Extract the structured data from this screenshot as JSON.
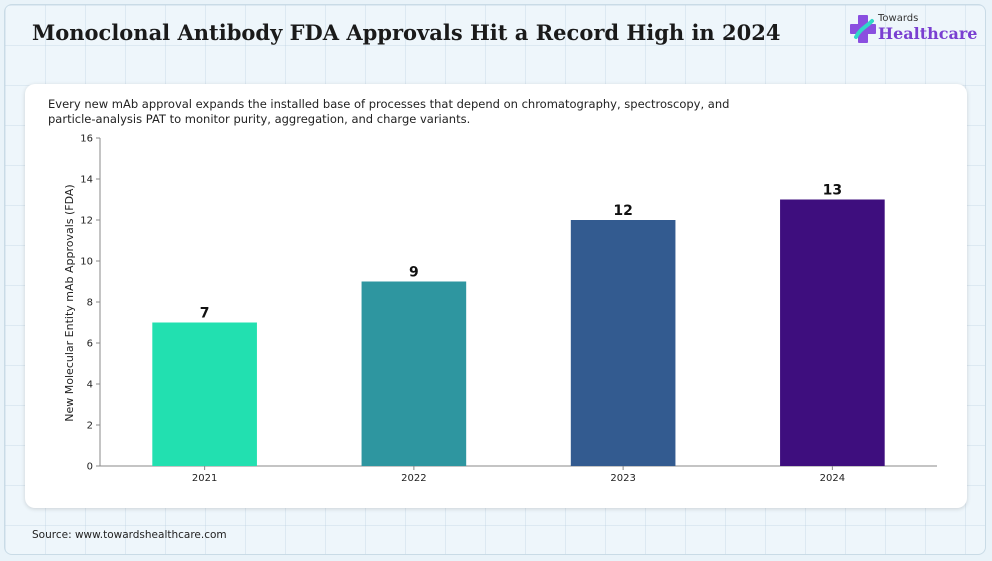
{
  "header": {
    "title": "Monoclonal Antibody FDA Approvals Hit a Record High in 2024"
  },
  "logo": {
    "small_text": "Towards",
    "brand_text": "Healthcare",
    "icon": "medical-cross-logo-icon"
  },
  "subtitle": "Every new mAb approval expands the installed base of processes that depend on chromatography, spectroscopy, and particle-analysis PAT to monitor purity, aggregation, and charge variants.",
  "footer": {
    "source": "Source: www.towardshealthcare.com"
  },
  "colors": {
    "brand": "#7a3fd1",
    "bars": [
      "#22e0b0",
      "#2e96a0",
      "#335b90",
      "#3e0e7e"
    ]
  },
  "chart_data": {
    "type": "bar",
    "categories": [
      "2021",
      "2022",
      "2023",
      "2024"
    ],
    "values": [
      7,
      9,
      12,
      13
    ],
    "data_labels": [
      "7",
      "9",
      "12",
      "13"
    ],
    "ylabel": "New Molecular Entity mAb Approvals (FDA)",
    "xlabel": "",
    "ylim": [
      0,
      16
    ],
    "yticks": [
      0,
      2,
      4,
      6,
      8,
      10,
      12,
      14,
      16
    ],
    "grid": false,
    "legend": "none"
  }
}
